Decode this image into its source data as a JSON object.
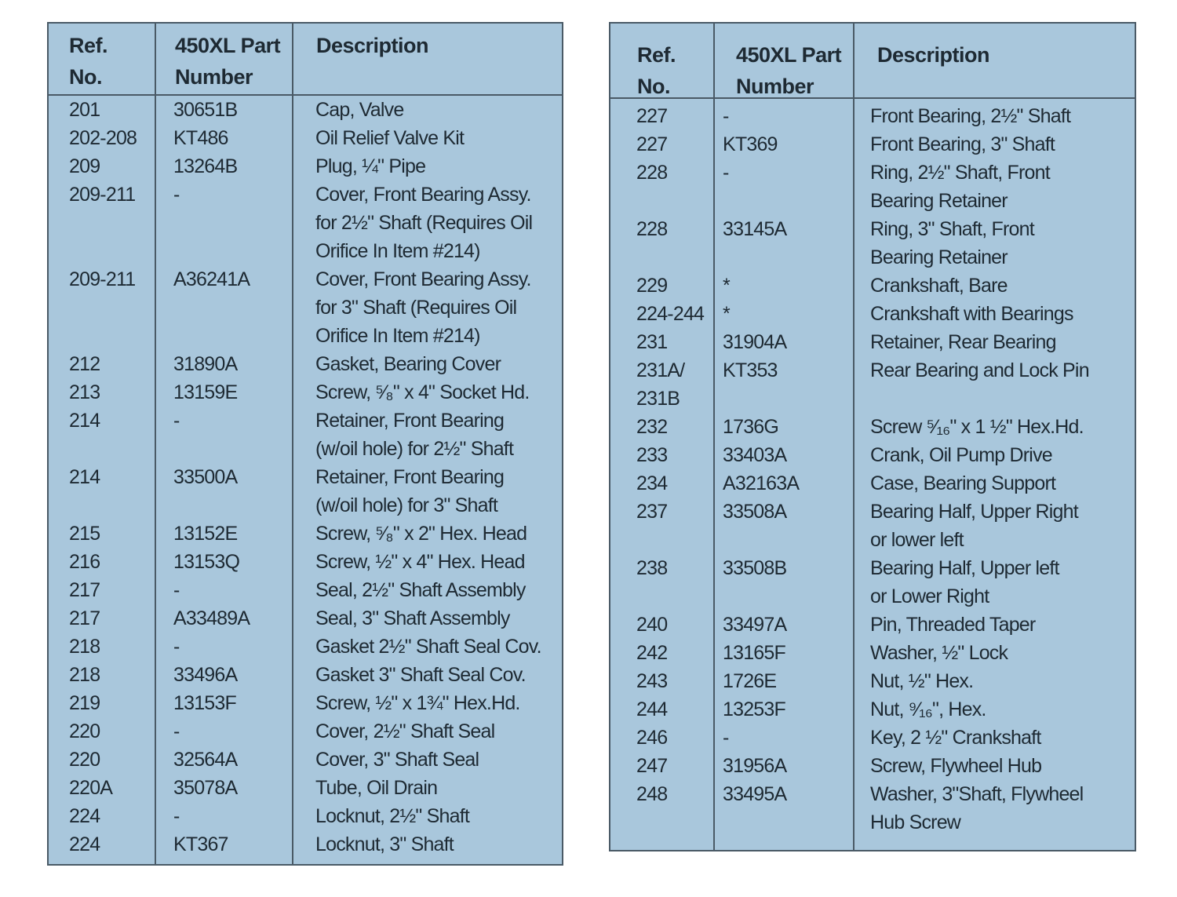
{
  "headers": {
    "ref": "Ref.\nNo.",
    "part": "450XL Part\nNumber",
    "desc": "Description"
  },
  "left_rows": [
    [
      "201",
      "30651B",
      "Cap, Valve"
    ],
    [
      "202-208",
      "KT486",
      "Oil Relief Valve Kit"
    ],
    [
      "209",
      "13264B",
      "Plug, ¼\" Pipe"
    ],
    [
      "209-211",
      "-",
      "Cover, Front Bearing Assy.\nfor 2½\" Shaft (Requires Oil\nOrifice In Item #214)"
    ],
    [
      "209-211",
      "A36241A",
      "Cover, Front Bearing Assy.\nfor 3\" Shaft (Requires Oil\nOrifice In Item #214)"
    ],
    [
      "212",
      "31890A",
      "Gasket, Bearing Cover"
    ],
    [
      "213",
      "13159E",
      "Screw, ⁵⁄₈\" x 4\" Socket Hd."
    ],
    [
      "214",
      "-",
      "Retainer, Front Bearing\n(w/oil hole) for 2½\" Shaft"
    ],
    [
      "214",
      "33500A",
      "Retainer, Front Bearing\n(w/oil hole) for 3\" Shaft"
    ],
    [
      "215",
      "13152E",
      "Screw, ⁵⁄₈\" x 2\" Hex. Head"
    ],
    [
      "216",
      "13153Q",
      "Screw, ½\" x 4\" Hex. Head"
    ],
    [
      "217",
      "-",
      "Seal, 2½\" Shaft Assembly"
    ],
    [
      "217",
      "A33489A",
      "Seal, 3\" Shaft Assembly"
    ],
    [
      "218",
      "-",
      "Gasket 2½\" Shaft Seal Cov."
    ],
    [
      "218",
      "33496A",
      "Gasket 3\" Shaft Seal Cov."
    ],
    [
      "219",
      "13153F",
      "Screw, ½\" x 1¾\" Hex.Hd."
    ],
    [
      "220",
      "-",
      "Cover, 2½\" Shaft Seal"
    ],
    [
      "220",
      "32564A",
      "Cover, 3\" Shaft Seal"
    ],
    [
      "220A",
      "35078A",
      "Tube, Oil Drain"
    ],
    [
      "224",
      "-",
      "Locknut, 2½\" Shaft"
    ],
    [
      "224",
      "KT367",
      "Locknut, 3\" Shaft"
    ]
  ],
  "right_rows": [
    [
      "227",
      "-",
      "Front Bearing, 2½\" Shaft"
    ],
    [
      "227",
      "KT369",
      "Front Bearing, 3\" Shaft"
    ],
    [
      "228",
      "-",
      "Ring, 2½\" Shaft, Front\nBearing Retainer"
    ],
    [
      "228",
      "33145A",
      "Ring, 3\" Shaft, Front\nBearing Retainer"
    ],
    [
      "229",
      "*",
      "Crankshaft, Bare"
    ],
    [
      "224-244",
      "*",
      "Crankshaft with Bearings"
    ],
    [
      "231",
      "31904A",
      "Retainer, Rear Bearing"
    ],
    [
      "231A/\n231B",
      "KT353",
      "Rear Bearing and Lock Pin"
    ],
    [
      "232",
      "1736G",
      "Screw ⁵⁄₁₆\" x 1 ½\" Hex.Hd."
    ],
    [
      "233",
      "33403A",
      "Crank, Oil Pump Drive"
    ],
    [
      "234",
      "A32163A",
      "Case, Bearing Support"
    ],
    [
      "237",
      "33508A",
      "Bearing Half, Upper Right\nor lower left"
    ],
    [
      "238",
      "33508B",
      "Bearing Half, Upper left\nor Lower Right"
    ],
    [
      "240",
      "33497A",
      "Pin, Threaded Taper"
    ],
    [
      "242",
      "13165F",
      "Washer, ½\" Lock"
    ],
    [
      "243",
      "1726E",
      "Nut, ½\" Hex."
    ],
    [
      "244",
      "13253F",
      "Nut, ⁹⁄₁₆\", Hex."
    ],
    [
      "246",
      "-",
      "Key, 2 ½\" Crankshaft"
    ],
    [
      "247",
      "31956A",
      "Screw, Flywheel Hub"
    ],
    [
      "248",
      "33495A",
      "Washer, 3\"Shaft, Flywheel\nHub Screw"
    ]
  ]
}
